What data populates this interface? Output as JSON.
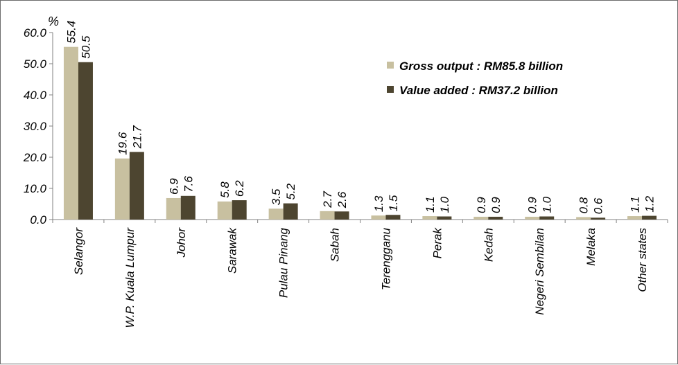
{
  "chart_data": {
    "type": "bar",
    "title": "",
    "xlabel": "",
    "ylabel": "%",
    "ylim": [
      0,
      60
    ],
    "yticks": [
      "0.0",
      "10.0",
      "20.0",
      "30.0",
      "40.0",
      "50.0",
      "60.0"
    ],
    "grid": false,
    "legend_position": "top-right",
    "categories": [
      "Selangor",
      "W.P. Kuala Lumpur",
      "Johor",
      "Sarawak",
      "Pulau Pinang",
      "Sabah",
      "Terengganu",
      "Perak",
      "Kedah",
      "Negeri Sembilan",
      "Melaka",
      "Other states"
    ],
    "series": [
      {
        "name": "Gross output : RM85.8 billion",
        "color": "#c8c0a0",
        "values": [
          55.4,
          19.6,
          6.9,
          5.8,
          3.5,
          2.7,
          1.3,
          1.1,
          0.9,
          0.9,
          0.8,
          1.1
        ],
        "labels": [
          "55.4",
          "19.6",
          "6.9",
          "5.8",
          "3.5",
          "2.7",
          "1.3",
          "1.1",
          "0.9",
          "0.9",
          "0.8",
          "1.1"
        ]
      },
      {
        "name": "Value added : RM37.2 billion",
        "color": "#4d4530",
        "values": [
          50.5,
          21.7,
          7.6,
          6.2,
          5.2,
          2.6,
          1.5,
          1.0,
          0.9,
          1.0,
          0.6,
          1.2
        ],
        "labels": [
          "50.5",
          "21.7",
          "7.6",
          "6.2",
          "5.2",
          "2.6",
          "1.5",
          "1.0",
          "0.9",
          "1.0",
          "0.6",
          "1.2"
        ]
      }
    ]
  }
}
